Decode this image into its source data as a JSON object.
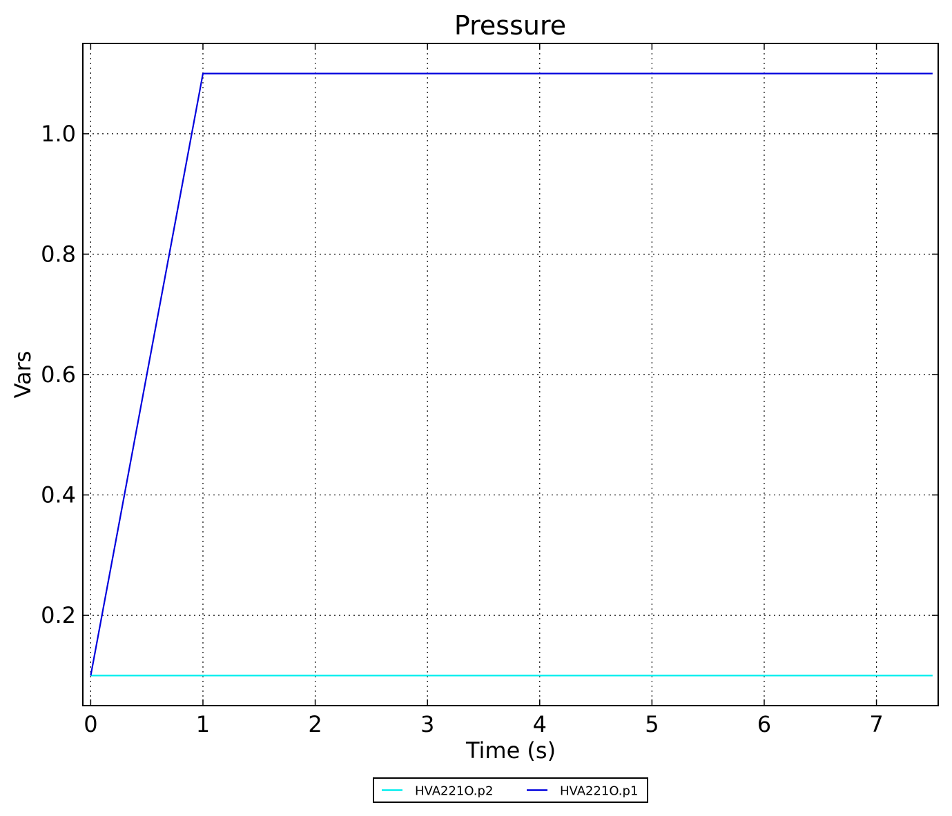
{
  "chart_data": {
    "type": "line",
    "title": "Pressure",
    "xlabel": "Time (s)",
    "ylabel": "Vars",
    "xlim": [
      -0.07,
      7.55
    ],
    "ylim": [
      0.05,
      1.15
    ],
    "xticks": [
      0,
      1,
      2,
      3,
      4,
      5,
      6,
      7
    ],
    "xtick_labels": [
      "0",
      "1",
      "2",
      "3",
      "4",
      "5",
      "6",
      "7"
    ],
    "yticks": [
      0.2,
      0.4,
      0.6,
      0.8,
      1.0
    ],
    "ytick_labels": [
      "0.2",
      "0.4",
      "0.6",
      "0.8",
      "1.0"
    ],
    "grid": true,
    "legend_position": "bottom-center, outside plot",
    "series": [
      {
        "name": "HVA221O.p2",
        "color": "#00eeee",
        "x": [
          0,
          7.5
        ],
        "y": [
          0.1,
          0.1
        ]
      },
      {
        "name": "HVA221O.p1",
        "color": "#0000dd",
        "x": [
          0,
          1,
          7.5
        ],
        "y": [
          0.1,
          1.1,
          1.1
        ]
      }
    ]
  }
}
